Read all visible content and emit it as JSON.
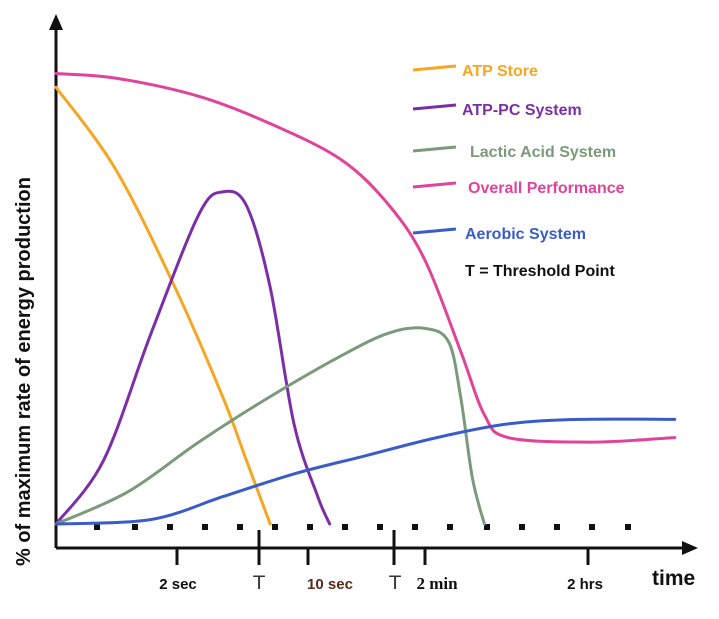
{
  "chart_data": {
    "type": "line",
    "title": "",
    "ylabel": "% of maximum rate of energy production",
    "xlabel": "time",
    "x_ticks": [
      {
        "label": "2 sec",
        "color": "#111111",
        "style": "sans"
      },
      {
        "label": "T",
        "color": "#333333",
        "style": "T"
      },
      {
        "label": "10 sec",
        "color": "#5a2a1a",
        "style": "sans"
      },
      {
        "label": "T",
        "color": "#333333",
        "style": "T"
      },
      {
        "label": "2 min",
        "color": "#111111",
        "style": "serif"
      },
      {
        "label": "2 hrs",
        "color": "#111111",
        "style": "sans"
      }
    ],
    "ylim": [
      0,
      100
    ],
    "grid": false,
    "legend_position": "top-right",
    "series": [
      {
        "name": "ATP Store",
        "color": "#f5a623",
        "points": [
          [
            0,
            96
          ],
          [
            5,
            78
          ],
          [
            10,
            52
          ],
          [
            14,
            28
          ],
          [
            16,
            14
          ],
          [
            18,
            0
          ]
        ]
      },
      {
        "name": "ATP-PC System",
        "color": "#7b2fa6",
        "points": [
          [
            0,
            0
          ],
          [
            4,
            14
          ],
          [
            8,
            42
          ],
          [
            12,
            68
          ],
          [
            14,
            73
          ],
          [
            16,
            70
          ],
          [
            18,
            52
          ],
          [
            20,
            22
          ],
          [
            22,
            6
          ],
          [
            23,
            0
          ]
        ]
      },
      {
        "name": "Lactic Acid System",
        "color": "#7a9a7a",
        "points": [
          [
            0,
            0
          ],
          [
            6,
            7
          ],
          [
            12,
            18
          ],
          [
            18,
            28
          ],
          [
            24,
            37
          ],
          [
            28,
            42
          ],
          [
            31,
            43
          ],
          [
            33,
            40
          ],
          [
            34,
            28
          ],
          [
            35,
            10
          ],
          [
            36,
            0
          ]
        ]
      },
      {
        "name": "Overall Performance",
        "color": "#e0449a",
        "points": [
          [
            0,
            99
          ],
          [
            5,
            98
          ],
          [
            12,
            94
          ],
          [
            18,
            88
          ],
          [
            24,
            80
          ],
          [
            28,
            70
          ],
          [
            31,
            58
          ],
          [
            34,
            38
          ],
          [
            36,
            24
          ],
          [
            38,
            19
          ],
          [
            45,
            18
          ],
          [
            52,
            19
          ]
        ]
      },
      {
        "name": "Aerobic System",
        "color": "#3a5cc8",
        "points": [
          [
            0,
            0
          ],
          [
            8,
            1
          ],
          [
            14,
            6
          ],
          [
            20,
            11
          ],
          [
            26,
            15
          ],
          [
            32,
            19
          ],
          [
            38,
            22
          ],
          [
            44,
            23
          ],
          [
            52,
            23
          ]
        ]
      }
    ],
    "annotation": "T = Threshold Point"
  }
}
